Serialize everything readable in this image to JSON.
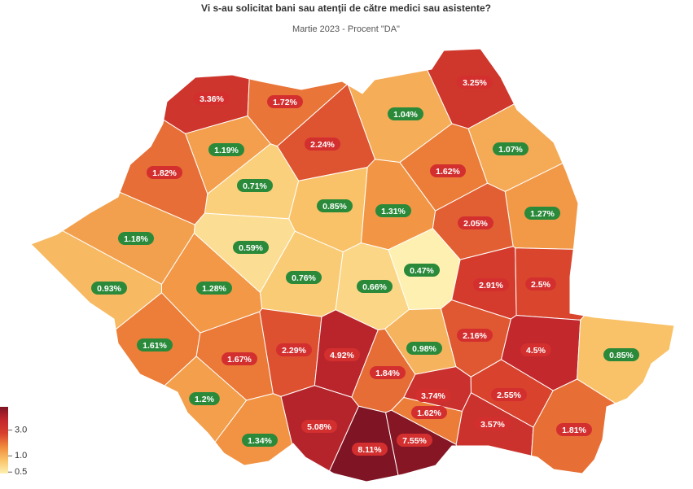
{
  "chart_data": {
    "type": "choropleth",
    "title": "Vi s-au solicitat bani sau atenţii de către medici sau asistente?",
    "subtitle": "Martie 2023 - Procent \"DA\"",
    "values": [
      3.36,
      1.72,
      3.25,
      1.04,
      1.19,
      2.24,
      1.07,
      1.82,
      0.71,
      1.62,
      0.85,
      1.31,
      1.27,
      2.05,
      1.18,
      0.59,
      0.47,
      0.93,
      1.28,
      0.76,
      0.66,
      2.91,
      2.5,
      1.61,
      1.67,
      2.29,
      4.92,
      0.98,
      2.16,
      4.5,
      0.85,
      1.84,
      1.2,
      3.74,
      2.55,
      1.62,
      5.08,
      3.57,
      1.81,
      1.34,
      8.11,
      7.55
    ],
    "value_labels": [
      "3.36%",
      "1.72%",
      "3.25%",
      "1.04%",
      "1.19%",
      "2.24%",
      "1.07%",
      "1.82%",
      "0.71%",
      "1.62%",
      "0.85%",
      "1.31%",
      "1.27%",
      "2.05%",
      "1.18%",
      "0.59%",
      "0.47%",
      "0.93%",
      "1.28%",
      "0.76%",
      "0.66%",
      "2.91%",
      "2.5%",
      "1.61%",
      "1.67%",
      "2.29%",
      "4.92%",
      "0.98%",
      "2.16%",
      "4.5%",
      "0.85%",
      "1.84%",
      "1.2%",
      "3.74%",
      "2.55%",
      "1.62%",
      "5.08%",
      "3.57%",
      "1.81%",
      "1.34%",
      "8.11%",
      "7.55%"
    ],
    "badge_colors": [
      "#d32f2f",
      "#d32f2f",
      "#d32f2f",
      "#2a8a3a",
      "#2a8a3a",
      "#d32f2f",
      "#2a8a3a",
      "#d32f2f",
      "#2a8a3a",
      "#d32f2f",
      "#2a8a3a",
      "#2a8a3a",
      "#2a8a3a",
      "#d32f2f",
      "#2a8a3a",
      "#2a8a3a",
      "#2a8a3a",
      "#2a8a3a",
      "#2a8a3a",
      "#2a8a3a",
      "#2a8a3a",
      "#d32f2f",
      "#d32f2f",
      "#2a8a3a",
      "#d32f2f",
      "#d32f2f",
      "#d32f2f",
      "#2a8a3a",
      "#d32f2f",
      "#d32f2f",
      "#2a8a3a",
      "#d32f2f",
      "#2a8a3a",
      "#d32f2f",
      "#d32f2f",
      "#d32f2f",
      "#d32f2f",
      "#d32f2f",
      "#d32f2f",
      "#2a8a3a",
      "#d32f2f",
      "#d32f2f"
    ],
    "colorscale": [
      "#fdf0b0",
      "#f9c46a",
      "#f08a3c",
      "#d8402c",
      "#c2272d",
      "#7e1424"
    ],
    "log_scale": true,
    "clim": [
      0.47,
      8.11
    ],
    "cticks": [
      0.5,
      {
        "value": 1,
        "label": "1.0"
      },
      {
        "value": 3,
        "label": "3.0"
      }
    ]
  }
}
